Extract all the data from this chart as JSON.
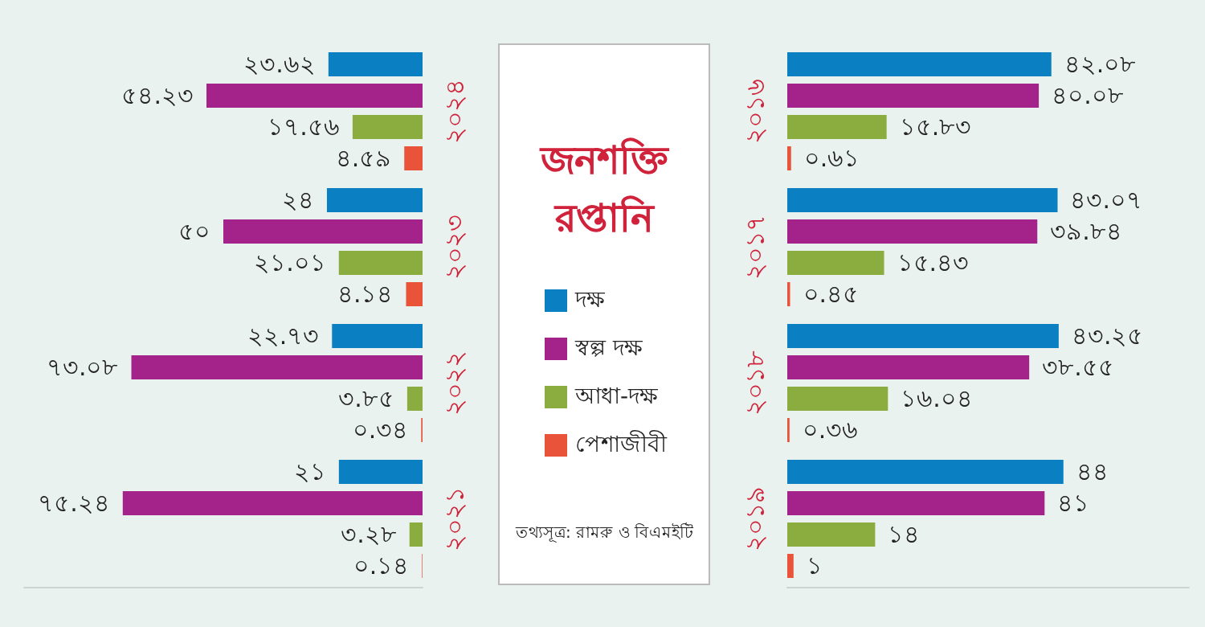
{
  "chart_data": [
    {
      "type": "bar",
      "orientation": "horizontal",
      "categories": [
        "২০২৪",
        "২০২৩",
        "২০২২",
        "২০২১"
      ],
      "xlim": [
        100,
        0
      ],
      "tick_labels": "y",
      "legend": "right",
      "series": [
        {
          "name": "দক্ষ",
          "color": "#0a7fc2",
          "values": [
            23.62,
            24,
            22.73,
            21
          ],
          "value_labels": [
            "২৩.৬২",
            "২৪",
            "২২.৭৩",
            "২১"
          ]
        },
        {
          "name": "স্বল্প দক্ষ",
          "color": "#a3238a",
          "values": [
            54.23,
            50,
            73.08,
            75.24
          ],
          "value_labels": [
            "৫৪.২৩",
            "৫০",
            "৭৩.০৮",
            "৭৫.২৪"
          ]
        },
        {
          "name": "আধা-দক্ষ",
          "color": "#8bac3e",
          "values": [
            17.56,
            21.01,
            3.85,
            3.28
          ],
          "value_labels": [
            "১৭.৫৬",
            "২১.০১",
            "৩.৮৫",
            "৩.২৮"
          ]
        },
        {
          "name": "পেশাজীবী",
          "color": "#e9533a",
          "values": [
            4.59,
            4.14,
            0.34,
            0.14
          ],
          "value_labels": [
            "৪.৫৯",
            "৪.১৪",
            "০.৩৪",
            "০.১৪"
          ]
        }
      ]
    },
    {
      "type": "other",
      "title": "জনশক্তি রপ্তানি",
      "annotations": [
        "তথ্যসূত্র: রামরু ও বিএমইটি"
      ]
    },
    {
      "type": "bar",
      "orientation": "horizontal",
      "categories": [
        "২০১৬",
        "২০১৭",
        "২০১৮",
        "২০১৯"
      ],
      "xlim": [
        0,
        64
      ],
      "tick_labels": "y",
      "series": [
        {
          "color": "#0a7fc2",
          "values": [
            42.08,
            43.07,
            43.25,
            44
          ],
          "value_labels": [
            "৪২.০৮",
            "৪৩.০৭",
            "৪৩.২৫",
            "৪৪"
          ]
        },
        {
          "color": "#a3238a",
          "values": [
            40.08,
            39.84,
            38.55,
            41
          ],
          "value_labels": [
            "৪০.০৮",
            "৩৯.৮৪",
            "৩৮.৫৫",
            "৪১"
          ]
        },
        {
          "color": "#8bac3e",
          "values": [
            15.83,
            15.43,
            16.04,
            14
          ],
          "value_labels": [
            "১৫.৮৩",
            "১৫.৪৩",
            "১৬.০৪",
            "১৪"
          ]
        },
        {
          "color": "#e9533a",
          "values": [
            0.61,
            0.45,
            0.36,
            1
          ],
          "value_labels": [
            "০.৬১",
            "০.৪৫",
            "০.৩৬",
            "১"
          ]
        }
      ]
    }
  ]
}
